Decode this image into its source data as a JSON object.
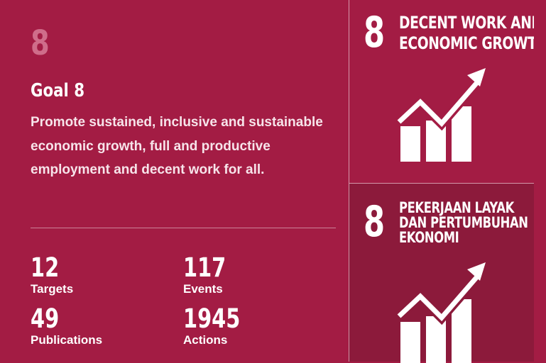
{
  "goal": {
    "number": "8",
    "title": "Goal 8",
    "description": "Promote sustained, inclusive and sustainable economic growth, full and productive employment and decent work for all."
  },
  "stats": [
    {
      "value": "12",
      "label": "Targets"
    },
    {
      "value": "117",
      "label": "Events"
    },
    {
      "value": "49",
      "label": "Publications"
    },
    {
      "value": "1945",
      "label": "Actions"
    }
  ],
  "tiles": [
    {
      "number": "8",
      "line1": "DECENT WORK AND",
      "line2": "ECONOMIC GROWTH",
      "line3": "",
      "icon": "growth-chart-icon"
    },
    {
      "number": "8",
      "line1": "PEKERJAAN LAYAK",
      "line2": "DAN PERTUMBUHAN",
      "line3": "EKONOMI",
      "icon": "growth-chart-icon"
    }
  ],
  "colors": {
    "background": "#a31c44",
    "tile_alt": "#8c1a3b",
    "muted_number": "#cf6d8a"
  }
}
